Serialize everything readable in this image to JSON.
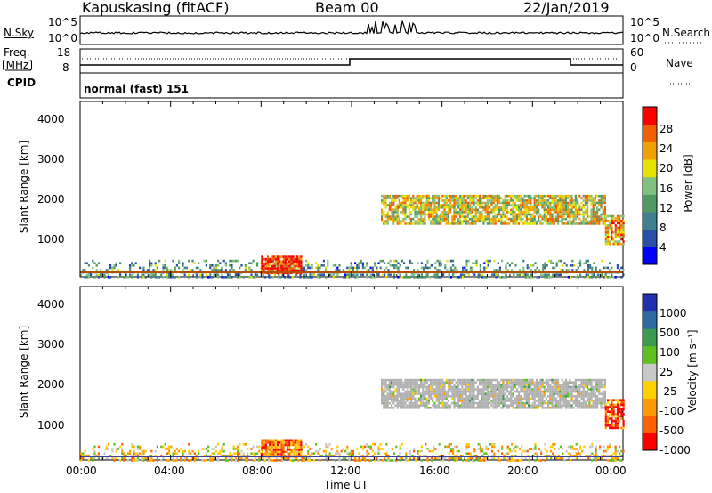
{
  "header": {
    "station": "Kapuskasing (fitACF)",
    "beam": "Beam 00",
    "date": "22/Jan/2019"
  },
  "noise_panel": {
    "left_label": "N.Sky",
    "right_label": "N.Search",
    "tick_top": "10^5",
    "tick_bottom": "10^0",
    "tick_top_right": "10^5",
    "tick_bottom_right": "10^0"
  },
  "freq_panel": {
    "left_label": "Freq.",
    "left_unit": "[MHz]",
    "right_label": "Nave",
    "left_ticks": [
      "18",
      "8"
    ],
    "right_ticks": [
      "60",
      "0"
    ]
  },
  "cpid": {
    "label": "CPID",
    "value": "normal (fast) 151"
  },
  "colors": {
    "palette_power": [
      "#0000ff",
      "#2a4fa8",
      "#3f7f8f",
      "#4f9a60",
      "#80c080",
      "#e8e000",
      "#f0a000",
      "#f06000",
      "#ff0000"
    ],
    "palette_velocity": [
      "#ff0000",
      "#ff6000",
      "#ff9900",
      "#ffd000",
      "#c8c8c8",
      "#60c020",
      "#3a9a50",
      "#2f6aa0",
      "#2030b0"
    ],
    "ground_scatter": "#b0b0b0"
  },
  "chart_data": [
    {
      "type": "heatmap",
      "panel": "power",
      "ylabel": "Slant Range [km]",
      "yticks": [
        "4000",
        "3000",
        "2000",
        "1000"
      ],
      "ylim": [
        180,
        4500
      ],
      "xlim": [
        0,
        24
      ],
      "colorbar_label": "Power [dB]",
      "colorbar_ticks": [
        "28",
        "24",
        "20",
        "16",
        "12",
        "8",
        "4"
      ],
      "colorbar_range": [
        0,
        30
      ],
      "regions": [
        {
          "t0": 0,
          "t1": 24,
          "r0": 180,
          "r1": 600,
          "level": 0.35,
          "density": 0.55
        },
        {
          "t0": 8,
          "t1": 9.8,
          "r0": 250,
          "r1": 700,
          "level": 0.92,
          "density": 0.9
        },
        {
          "t0": 13.3,
          "t1": 23.2,
          "r0": 1500,
          "r1": 2200,
          "level": 0.6,
          "density": 0.8
        },
        {
          "t0": 23.2,
          "t1": 24,
          "r0": 1000,
          "r1": 1700,
          "level": 0.7,
          "density": 0.8
        }
      ]
    },
    {
      "type": "heatmap",
      "panel": "velocity",
      "ylabel": "Slant Range [km]",
      "yticks": [
        "4000",
        "3000",
        "2000",
        "1000"
      ],
      "ylim": [
        180,
        4500
      ],
      "xlim": [
        0,
        24
      ],
      "xticks": [
        "00:00",
        "04:00",
        "08:00",
        "12:00",
        "16:00",
        "20:00",
        "00:00"
      ],
      "xlabel": "Time UT",
      "colorbar_label": "Velocity [m s⁻¹]",
      "colorbar_ticks": [
        "1000",
        "500",
        "100",
        "25",
        "-25",
        "-100",
        "-500",
        "-1000"
      ],
      "regions": [
        {
          "t0": 0,
          "t1": 24,
          "r0": 180,
          "r1": 600,
          "level": 0.4,
          "density": 0.5
        },
        {
          "t0": 8,
          "t1": 9.8,
          "r0": 250,
          "r1": 700,
          "level": 0.2,
          "density": 0.9
        },
        {
          "t0": 13.3,
          "t1": 23.2,
          "r0": 1500,
          "r1": 2200,
          "level": 0.5,
          "density": 0.85
        },
        {
          "t0": 23.2,
          "t1": 24,
          "r0": 1000,
          "r1": 1700,
          "level": 0.15,
          "density": 0.8
        }
      ]
    }
  ]
}
